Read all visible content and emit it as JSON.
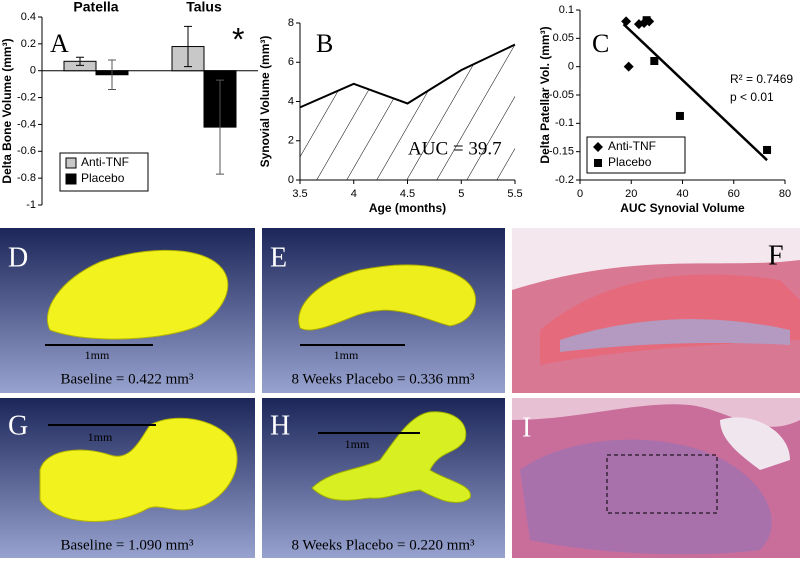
{
  "chart_data": [
    {
      "type": "bar",
      "y_label": "Delta Bone Volume (mm³)",
      "categories": [
        "Patella",
        "Talus"
      ],
      "series": [
        {
          "name": "Anti-TNF",
          "color": "#c8c8c8",
          "values": [
            0.07,
            0.18
          ],
          "errors": [
            0.03,
            0.15
          ]
        },
        {
          "name": "Placebo",
          "color": "#000000",
          "values": [
            -0.03,
            -0.42
          ],
          "errors": [
            0.11,
            0.35
          ]
        }
      ],
      "ylim": [
        -1,
        0.4
      ],
      "yticks": [
        0.4,
        0.2,
        0,
        -0.2,
        -0.4,
        -0.6,
        -0.8,
        -1
      ],
      "legend": "lower left",
      "annotations": [
        "A",
        "*"
      ]
    },
    {
      "type": "line",
      "x_label": "Age (months)",
      "y_label": "Synovial Volume (mm³)",
      "x": [
        3.5,
        4,
        4.5,
        5,
        5.5
      ],
      "values": [
        3.7,
        4.9,
        3.9,
        5.6,
        6.9
      ],
      "color": "#000000",
      "xlim": [
        3.5,
        5.5
      ],
      "xticks": [
        3.5,
        4,
        4.5,
        5,
        5.5
      ],
      "ylim": [
        0,
        8
      ],
      "yticks": [
        0,
        2,
        4,
        6,
        8
      ],
      "annotations": [
        "B",
        "AUC = 39.7"
      ]
    },
    {
      "type": "scatter",
      "x_label": "AUC Synovial Volume",
      "y_label": "Delta Patellar Vol. (mm³)",
      "series": [
        {
          "name": "Anti-TNF",
          "marker": "diamond",
          "color": "#000000",
          "x": [
            18,
            19,
            23,
            25,
            27
          ],
          "values": [
            0.08,
            0,
            0.075,
            0.077,
            0.08
          ]
        },
        {
          "name": "Placebo",
          "marker": "square",
          "color": "#000000",
          "x": [
            26,
            29,
            39,
            73
          ],
          "values": [
            0.082,
            0.01,
            -0.087,
            -0.147
          ]
        }
      ],
      "trendline": {
        "x": [
          17,
          73
        ],
        "y": [
          0.075,
          -0.165
        ]
      },
      "xlim": [
        0,
        80
      ],
      "xticks": [
        0,
        20,
        40,
        60,
        80
      ],
      "ylim": [
        -0.2,
        0.1
      ],
      "yticks": [
        0.1,
        0.05,
        0,
        -0.05,
        -0.1,
        -0.15,
        -0.2
      ],
      "legend": "lower left",
      "annotations": [
        "C",
        "R² = 0.7469",
        "p < 0.01"
      ]
    }
  ],
  "panels": [
    {
      "label": "D",
      "scale_bar": "1mm",
      "caption": "Baseline = 0.422 mm³"
    },
    {
      "label": "E",
      "scale_bar": "1mm",
      "caption": "8 Weeks Placebo = 0.336 mm³"
    },
    {
      "label": "F"
    },
    {
      "label": "G",
      "scale_bar": "1mm",
      "caption": "Baseline = 1.090 mm³"
    },
    {
      "label": "H",
      "scale_bar": "1mm",
      "caption": "8 Weeks Placebo = 0.220 mm³"
    },
    {
      "label": "I"
    }
  ]
}
